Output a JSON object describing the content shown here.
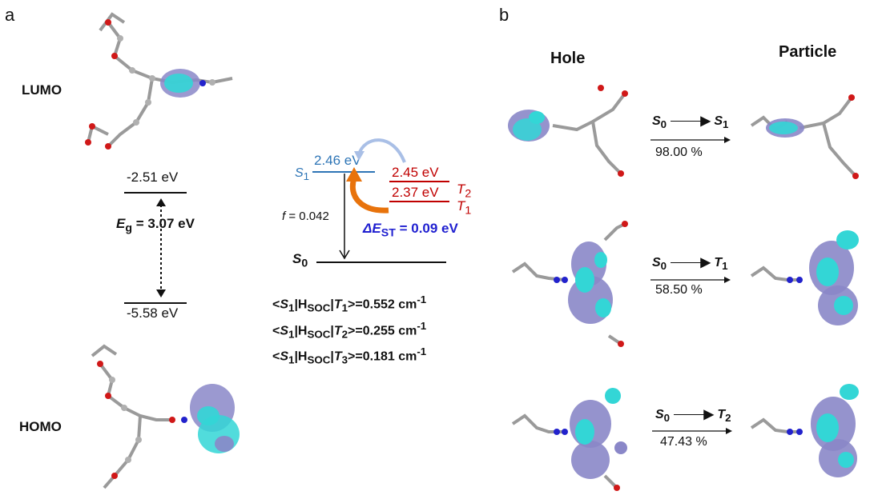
{
  "panel_a": {
    "letter": "a",
    "lumo_label": "LUMO",
    "homo_label": "HOMO",
    "lumo_energy": "-2.51 eV",
    "homo_energy": "-5.58 eV",
    "gap_symbol": "E",
    "gap_subscript": "g",
    "gap_value": " = 3.07 eV"
  },
  "energy_diagram": {
    "s1_label": "S",
    "s1_sub": "1",
    "s1_energy": "2.46 eV",
    "t2_energy": "2.45 eV",
    "t1_energy": "2.37 eV",
    "t2_label": "T",
    "t2_sub": "2",
    "t1_label": "T",
    "t1_sub": "1",
    "s0_label": "S",
    "s0_sub": "0",
    "f_label": "f",
    "f_value": " = 0.042",
    "dest_label": "ΔE",
    "dest_sub": "ST",
    "dest_value": " = 0.09 eV",
    "soc": [
      {
        "pre": "<",
        "s": "S",
        "ssub": "1",
        "mid": "|H",
        "hsub": "SOC",
        "bar": "|",
        "t": "T",
        "tsub": "1",
        "val": ">=0.552 cm",
        "exp": "-1"
      },
      {
        "pre": "<",
        "s": "S",
        "ssub": "1",
        "mid": "|H",
        "hsub": "SOC",
        "bar": "|",
        "t": "T",
        "tsub": "2",
        "val": ">=0.255 cm",
        "exp": "-1"
      },
      {
        "pre": "<",
        "s": "S",
        "ssub": "1",
        "mid": "|H",
        "hsub": "SOC",
        "bar": "|",
        "t": "T",
        "tsub": "3",
        "val": ">=0.181 cm",
        "exp": "-1"
      }
    ]
  },
  "panel_b": {
    "letter": "b",
    "hole_header": "Hole",
    "particle_header": "Particle",
    "transitions": [
      {
        "from": "S",
        "from_sub": "0",
        "to": "S",
        "to_sub": "1",
        "percent": "98.00 %"
      },
      {
        "from": "S",
        "from_sub": "0",
        "to": "T",
        "to_sub": "1",
        "percent": "58.50 %"
      },
      {
        "from": "S",
        "from_sub": "0",
        "to": "T",
        "to_sub": "2",
        "percent": "47.43 %"
      }
    ]
  },
  "colors": {
    "orbital_cyan": "#33d6d6",
    "orbital_lavender": "#8a87c8",
    "s1_blue": "#2e75b6",
    "triplet_red": "#c00000",
    "dest_blue": "#1f1fd0",
    "arrow_orange": "#e8730c",
    "arrow_lightblue": "#a9bfe6"
  }
}
